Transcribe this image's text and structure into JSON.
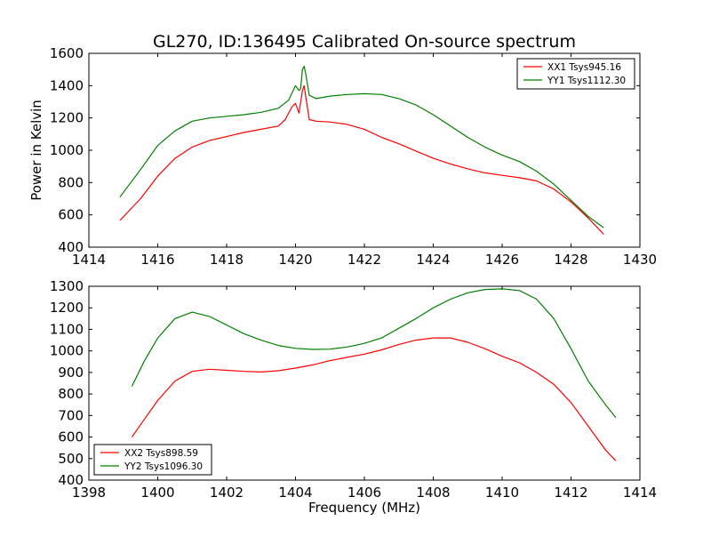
{
  "title": "GL270, ID:136495 Calibrated On-source spectrum",
  "chart_data": [
    {
      "type": "line",
      "title": "GL270, ID:136495 Calibrated On-source spectrum",
      "xlabel": "",
      "ylabel": "Power in Kelvin",
      "xlim": [
        1414,
        1430
      ],
      "ylim": [
        400,
        1600
      ],
      "xticks": [
        "1414",
        "1416",
        "1418",
        "1420",
        "1422",
        "1424",
        "1426",
        "1428",
        "1430"
      ],
      "yticks": [
        "400",
        "600",
        "800",
        "1000",
        "1200",
        "1400",
        "1600"
      ],
      "legend_position": "top-right",
      "grid": false,
      "series": [
        {
          "name": "XX1 Tsys945.16",
          "color": "#ff0000",
          "x": [
            1414.9,
            1415.5,
            1416.0,
            1416.5,
            1417.0,
            1417.5,
            1418.0,
            1418.5,
            1419.0,
            1419.5,
            1419.7,
            1419.9,
            1420.0,
            1420.1,
            1420.2,
            1420.25,
            1420.3,
            1420.4,
            1420.6,
            1421.0,
            1421.5,
            1422.0,
            1422.5,
            1423.0,
            1423.5,
            1424.0,
            1424.5,
            1425.0,
            1425.5,
            1426.0,
            1426.5,
            1427.0,
            1427.5,
            1428.0,
            1428.5,
            1428.95
          ],
          "y": [
            565,
            700,
            840,
            950,
            1020,
            1060,
            1085,
            1110,
            1130,
            1150,
            1190,
            1270,
            1290,
            1230,
            1370,
            1400,
            1330,
            1190,
            1180,
            1175,
            1160,
            1130,
            1080,
            1040,
            995,
            950,
            915,
            885,
            860,
            845,
            830,
            810,
            760,
            680,
            580,
            480
          ]
        },
        {
          "name": "YY1 Tsys1112.30",
          "color": "#008000",
          "x": [
            1414.9,
            1415.5,
            1416.0,
            1416.5,
            1417.0,
            1417.5,
            1418.0,
            1418.5,
            1419.0,
            1419.5,
            1419.8,
            1420.0,
            1420.1,
            1420.15,
            1420.2,
            1420.25,
            1420.3,
            1420.4,
            1420.6,
            1421.0,
            1421.5,
            1422.0,
            1422.5,
            1423.0,
            1423.5,
            1424.0,
            1424.5,
            1425.0,
            1425.5,
            1426.0,
            1426.5,
            1427.0,
            1427.5,
            1428.0,
            1428.5,
            1428.95
          ],
          "y": [
            710,
            880,
            1030,
            1120,
            1180,
            1200,
            1210,
            1220,
            1235,
            1260,
            1310,
            1400,
            1370,
            1380,
            1500,
            1520,
            1470,
            1340,
            1320,
            1335,
            1345,
            1350,
            1345,
            1320,
            1280,
            1220,
            1150,
            1080,
            1020,
            970,
            930,
            870,
            790,
            690,
            590,
            520
          ]
        }
      ]
    },
    {
      "type": "line",
      "title": "",
      "xlabel": "Frequency (MHz)",
      "ylabel": "",
      "xlim": [
        1398,
        1414
      ],
      "ylim": [
        400,
        1300
      ],
      "xticks": [
        "1398",
        "1400",
        "1402",
        "1404",
        "1406",
        "1408",
        "1410",
        "1412",
        "1414"
      ],
      "yticks": [
        "400",
        "500",
        "600",
        "700",
        "800",
        "900",
        "1000",
        "1100",
        "1200",
        "1300"
      ],
      "legend_position": "bottom-left",
      "grid": false,
      "series": [
        {
          "name": "XX2 Tsys898.59",
          "color": "#ff0000",
          "x": [
            1399.25,
            1399.6,
            1400.0,
            1400.5,
            1401.0,
            1401.5,
            1402.0,
            1402.5,
            1403.0,
            1403.5,
            1404.0,
            1404.5,
            1405.0,
            1405.5,
            1406.0,
            1406.5,
            1407.0,
            1407.5,
            1408.0,
            1408.5,
            1409.0,
            1409.5,
            1410.0,
            1410.5,
            1411.0,
            1411.5,
            1412.0,
            1412.5,
            1413.0,
            1413.3
          ],
          "y": [
            600,
            680,
            770,
            860,
            905,
            915,
            910,
            905,
            902,
            908,
            920,
            935,
            955,
            970,
            985,
            1005,
            1030,
            1050,
            1060,
            1060,
            1040,
            1010,
            975,
            945,
            900,
            845,
            760,
            650,
            540,
            490
          ]
        },
        {
          "name": "YY2 Tsys1096.30",
          "color": "#008000",
          "x": [
            1399.25,
            1399.6,
            1400.0,
            1400.5,
            1401.0,
            1401.5,
            1402.0,
            1402.5,
            1403.0,
            1403.5,
            1404.0,
            1404.5,
            1405.0,
            1405.5,
            1406.0,
            1406.5,
            1407.0,
            1407.5,
            1408.0,
            1408.5,
            1409.0,
            1409.5,
            1410.0,
            1410.5,
            1411.0,
            1411.5,
            1412.0,
            1412.5,
            1413.0,
            1413.3
          ],
          "y": [
            835,
            950,
            1060,
            1150,
            1180,
            1160,
            1120,
            1080,
            1050,
            1025,
            1012,
            1007,
            1008,
            1018,
            1035,
            1060,
            1105,
            1150,
            1200,
            1240,
            1270,
            1285,
            1288,
            1280,
            1240,
            1150,
            1010,
            860,
            750,
            690
          ]
        }
      ]
    }
  ]
}
